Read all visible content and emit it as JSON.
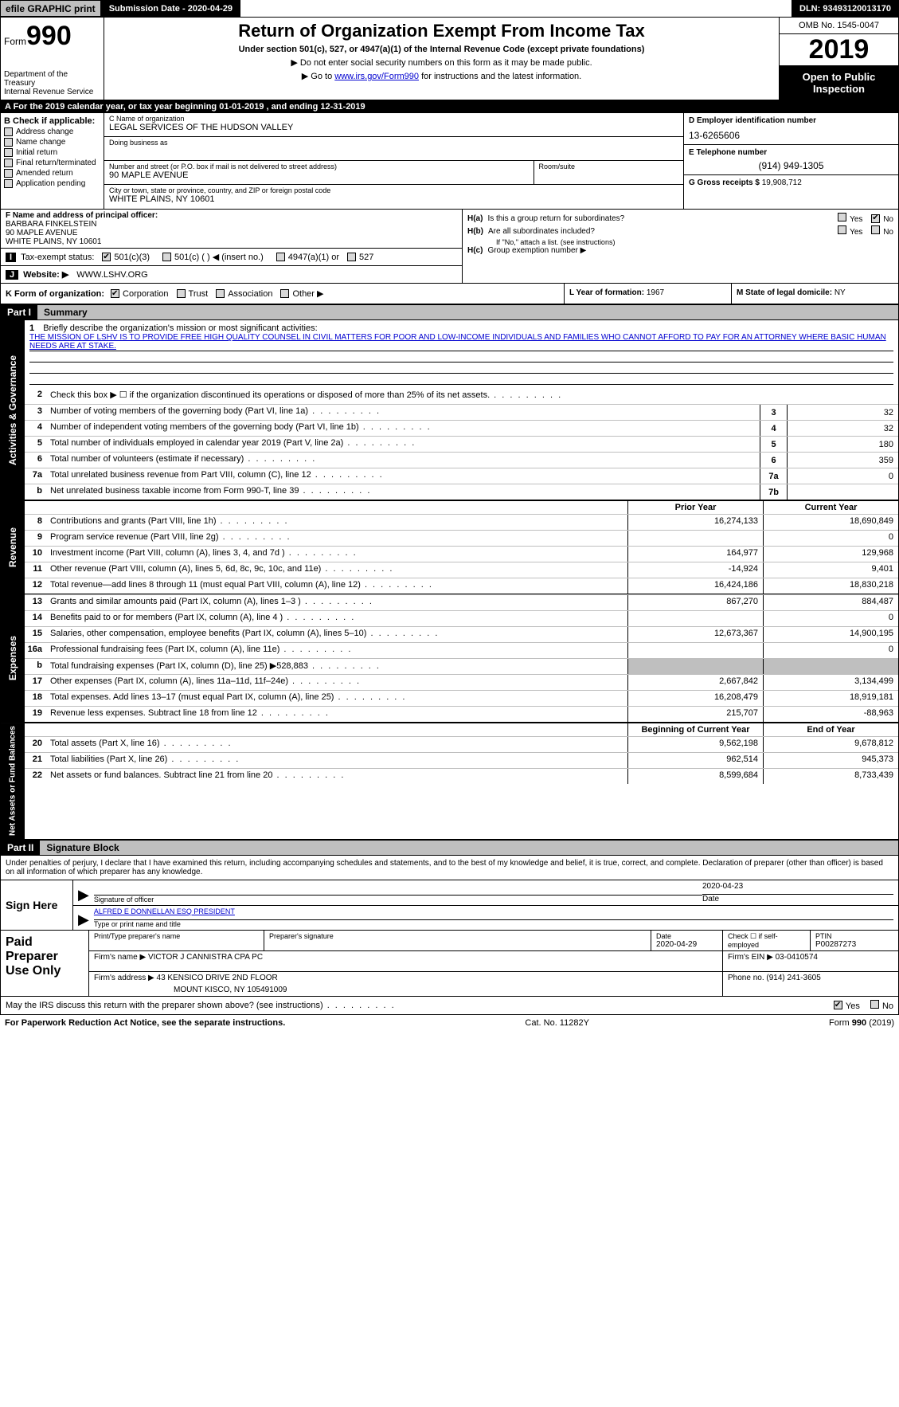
{
  "topbar": {
    "efile_label": "efile GRAPHIC print",
    "submission_label": "Submission Date - 2020-04-29",
    "dln": "DLN: 93493120013170"
  },
  "header": {
    "form_word": "Form",
    "form_number": "990",
    "title": "Return of Organization Exempt From Income Tax",
    "subtitle": "Under section 501(c), 527, or 4947(a)(1) of the Internal Revenue Code (except private foundations)",
    "line1": "Do not enter social security numbers on this form as it may be made public.",
    "line2_pre": "Go to ",
    "line2_link": "www.irs.gov/Form990",
    "line2_post": " for instructions and the latest information.",
    "dept1": "Department of the Treasury",
    "dept2": "Internal Revenue Service",
    "omb": "OMB No. 1545-0047",
    "year": "2019",
    "open_to_public": "Open to Public Inspection"
  },
  "calendar": {
    "pre": "A   For the 2019 calendar year, or tax year beginning ",
    "begin": "01-01-2019",
    "mid": "      , and ending ",
    "end": "12-31-2019"
  },
  "checkB": {
    "header": "B Check if applicable:",
    "items": [
      "Address change",
      "Name change",
      "Initial return",
      "Final return/terminated",
      "Amended return",
      "Application pending"
    ]
  },
  "org": {
    "name_lbl": "C Name of organization",
    "name": "LEGAL SERVICES OF THE HUDSON VALLEY",
    "dba_lbl": "Doing business as",
    "dba": "",
    "street_lbl": "Number and street (or P.O. box if mail is not delivered to street address)",
    "street": "90 MAPLE AVENUE",
    "room_lbl": "Room/suite",
    "room": "",
    "city_lbl": "City or town, state or province, country, and ZIP or foreign postal code",
    "city": "WHITE PLAINS, NY  10601"
  },
  "right": {
    "ein_lbl": "D Employer identification number",
    "ein": "13-6265606",
    "tel_lbl": "E Telephone number",
    "tel": "(914) 949-1305",
    "gross_lbl": "G Gross receipts $ ",
    "gross": "19,908,712"
  },
  "officer": {
    "lbl": "F  Name and address of principal officer:",
    "name": "BARBARA FINKELSTEIN",
    "street": "90 MAPLE AVENUE",
    "city": "WHITE PLAINS, NY  10601"
  },
  "tax_status": {
    "idx": "I",
    "lbl": "Tax-exempt status:",
    "opts": [
      "501(c)(3)",
      "501(c) (   ) ◀ (insert no.)",
      "4947(a)(1) or",
      "527"
    ]
  },
  "website": {
    "idx": "J",
    "lbl": "Website: ▶",
    "val": "WWW.LSHV.ORG"
  },
  "h": {
    "ha_lbl": "H(a)",
    "ha_txt": "Is this a group return for subordinates?",
    "hb_lbl": "H(b)",
    "hb_txt": "Are all subordinates included?",
    "hb_note": "If \"No,\" attach a list. (see instructions)",
    "hc_lbl": "H(c)",
    "hc_txt": "Group exemption number ▶",
    "yes": "Yes",
    "no": "No"
  },
  "k": {
    "lbl": "K Form of organization:",
    "opts": [
      "Corporation",
      "Trust",
      "Association",
      "Other ▶"
    ],
    "l_lbl": "L Year of formation: ",
    "l_val": "1967",
    "m_lbl": "M State of legal domicile: ",
    "m_val": "NY"
  },
  "part1": {
    "part": "Part I",
    "title": "Summary"
  },
  "mission": {
    "num": "1",
    "lbl": "Briefly describe the organization's mission or most significant activities:",
    "text": "THE MISSION OF LSHV IS TO PROVIDE FREE HIGH QUALITY COUNSEL IN CIVIL MATTERS FOR POOR AND LOW-INCOME INDIVIDUALS AND FAMILIES WHO CANNOT AFFORD TO PAY FOR AN ATTORNEY WHERE BASIC HUMAN NEEDS ARE AT STAKE."
  },
  "gov_rows": [
    {
      "n": "2",
      "t": "Check this box ▶ ☐ if the organization discontinued its operations or disposed of more than 25% of its net assets.",
      "box": "",
      "val": ""
    },
    {
      "n": "3",
      "t": "Number of voting members of the governing body (Part VI, line 1a)",
      "box": "3",
      "val": "32"
    },
    {
      "n": "4",
      "t": "Number of independent voting members of the governing body (Part VI, line 1b)",
      "box": "4",
      "val": "32"
    },
    {
      "n": "5",
      "t": "Total number of individuals employed in calendar year 2019 (Part V, line 2a)",
      "box": "5",
      "val": "180"
    },
    {
      "n": "6",
      "t": "Total number of volunteers (estimate if necessary)",
      "box": "6",
      "val": "359"
    },
    {
      "n": "7a",
      "t": "Total unrelated business revenue from Part VIII, column (C), line 12",
      "box": "7a",
      "val": "0"
    },
    {
      "n": "b",
      "t": "Net unrelated business taxable income from Form 990-T, line 39",
      "box": "7b",
      "val": ""
    }
  ],
  "fin_hdr": {
    "prior": "Prior Year",
    "current": "Current Year"
  },
  "revenue_rows": [
    {
      "n": "8",
      "t": "Contributions and grants (Part VIII, line 1h)",
      "p": "16,274,133",
      "c": "18,690,849"
    },
    {
      "n": "9",
      "t": "Program service revenue (Part VIII, line 2g)",
      "p": "",
      "c": "0"
    },
    {
      "n": "10",
      "t": "Investment income (Part VIII, column (A), lines 3, 4, and 7d )",
      "p": "164,977",
      "c": "129,968"
    },
    {
      "n": "11",
      "t": "Other revenue (Part VIII, column (A), lines 5, 6d, 8c, 9c, 10c, and 11e)",
      "p": "-14,924",
      "c": "9,401"
    },
    {
      "n": "12",
      "t": "Total revenue—add lines 8 through 11 (must equal Part VIII, column (A), line 12)",
      "p": "16,424,186",
      "c": "18,830,218"
    }
  ],
  "expense_rows": [
    {
      "n": "13",
      "t": "Grants and similar amounts paid (Part IX, column (A), lines 1–3 )",
      "p": "867,270",
      "c": "884,487"
    },
    {
      "n": "14",
      "t": "Benefits paid to or for members (Part IX, column (A), line 4 )",
      "p": "",
      "c": "0"
    },
    {
      "n": "15",
      "t": "Salaries, other compensation, employee benefits (Part IX, column (A), lines 5–10)",
      "p": "12,673,367",
      "c": "14,900,195"
    },
    {
      "n": "16a",
      "t": "Professional fundraising fees (Part IX, column (A), line 11e)",
      "p": "",
      "c": "0"
    },
    {
      "n": "b",
      "t": "Total fundraising expenses (Part IX, column (D), line 25) ▶528,883",
      "p": "shade",
      "c": "shade"
    },
    {
      "n": "17",
      "t": "Other expenses (Part IX, column (A), lines 11a–11d, 11f–24e)",
      "p": "2,667,842",
      "c": "3,134,499"
    },
    {
      "n": "18",
      "t": "Total expenses. Add lines 13–17 (must equal Part IX, column (A), line 25)",
      "p": "16,208,479",
      "c": "18,919,181"
    },
    {
      "n": "19",
      "t": "Revenue less expenses. Subtract line 18 from line 12",
      "p": "215,707",
      "c": "-88,963"
    }
  ],
  "na_hdr": {
    "begin": "Beginning of Current Year",
    "end": "End of Year"
  },
  "na_rows": [
    {
      "n": "20",
      "t": "Total assets (Part X, line 16)",
      "p": "9,562,198",
      "c": "9,678,812"
    },
    {
      "n": "21",
      "t": "Total liabilities (Part X, line 26)",
      "p": "962,514",
      "c": "945,373"
    },
    {
      "n": "22",
      "t": "Net assets or fund balances. Subtract line 21 from line 20",
      "p": "8,599,684",
      "c": "8,733,439"
    }
  ],
  "part2": {
    "part": "Part II",
    "title": "Signature Block"
  },
  "perjury": "Under penalties of perjury, I declare that I have examined this return, including accompanying schedules and statements, and to the best of my knowledge and belief, it is true, correct, and complete. Declaration of preparer (other than officer) is based on all information of which preparer has any knowledge.",
  "sign": {
    "here": "Sign Here",
    "sig_lbl": "Signature of officer",
    "date_lbl": "Date",
    "date": "2020-04-23",
    "name": "ALFRED E DONNELLAN ESQ  PRESIDENT",
    "name_lbl": "Type or print name and title"
  },
  "paid": {
    "title": "Paid Preparer Use Only",
    "pname_lbl": "Print/Type preparer's name",
    "psig_lbl": "Preparer's signature",
    "pdate_lbl": "Date",
    "pdate": "2020-04-29",
    "check_lbl": "Check ☐ if self-employed",
    "ptin_lbl": "PTIN",
    "ptin": "P00287273",
    "firm_name_lbl": "Firm's name    ▶",
    "firm_name": "VICTOR J CANNISTRA CPA PC",
    "firm_ein_lbl": "Firm's EIN ▶",
    "firm_ein": "03-0410574",
    "firm_addr_lbl": "Firm's address ▶",
    "firm_addr1": "43 KENSICO DRIVE 2ND FLOOR",
    "firm_addr2": "MOUNT KISCO, NY  105491009",
    "phone_lbl": "Phone no. ",
    "phone": "(914) 241-3605"
  },
  "discuss": {
    "txt": "May the IRS discuss this return with the preparer shown above? (see instructions)",
    "yes": "Yes",
    "no": "No"
  },
  "footer": {
    "left": "For Paperwork Reduction Act Notice, see the separate instructions.",
    "mid": "Cat. No. 11282Y",
    "right": "Form 990 (2019)"
  },
  "vtabs": {
    "gov": "Activities & Governance",
    "rev": "Revenue",
    "exp": "Expenses",
    "na": "Net Assets or Fund Balances"
  }
}
